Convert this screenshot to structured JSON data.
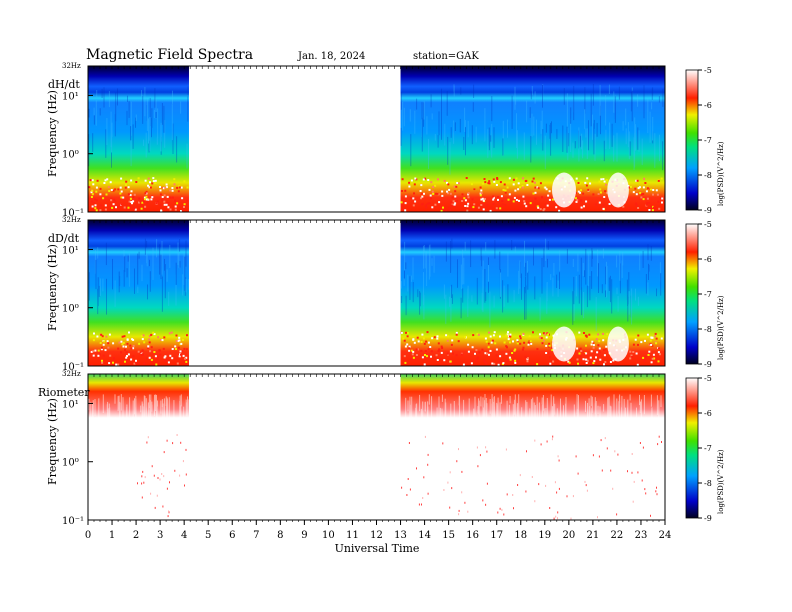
{
  "header": {
    "title": "Magnetic  Field  Spectra",
    "date": "Jan. 18, 2024",
    "station": "station=GAK"
  },
  "chart_data": {
    "type": "heatmap",
    "xlabel": "Universal  Time",
    "x_ticks": [
      "0",
      "1",
      "2",
      "3",
      "4",
      "5",
      "6",
      "7",
      "8",
      "9",
      "10",
      "11",
      "12",
      "13",
      "14",
      "15",
      "16",
      "17",
      "18",
      "19",
      "20",
      "21",
      "22",
      "23",
      "24"
    ],
    "xlim": [
      0,
      24
    ],
    "data_gap": [
      4.2,
      13.0
    ],
    "panels": [
      {
        "label": "dH/dt",
        "ylabel": "Frequency  (Hz)",
        "top_freq_label": "32Hz",
        "y_ticks": [
          "10¹",
          "10⁰",
          "10⁻¹"
        ],
        "colorbar_ticks": [
          "-5",
          "-6",
          "-7",
          "-8",
          "-9"
        ],
        "colorbar_label": "log(PSD)(V^2/Hz)"
      },
      {
        "label": "dD/dt",
        "ylabel": "Frequency  (Hz)",
        "top_freq_label": "32Hz",
        "y_ticks": [
          "10¹",
          "10⁰",
          "10⁻¹"
        ],
        "colorbar_ticks": [
          "-5",
          "-6",
          "-7",
          "-8",
          "-9"
        ],
        "colorbar_label": "log(PSD)(V^2/Hz)"
      },
      {
        "label": "Riometer",
        "ylabel": "Frequency  (Hz)",
        "top_freq_label": "32Hz",
        "y_ticks": [
          "10¹",
          "10⁰",
          "10⁻¹"
        ],
        "colorbar_ticks": [
          "-5",
          "-6",
          "-7",
          "-8",
          "-9"
        ],
        "colorbar_label": "log(PSD)(V^2/Hz)"
      }
    ]
  }
}
